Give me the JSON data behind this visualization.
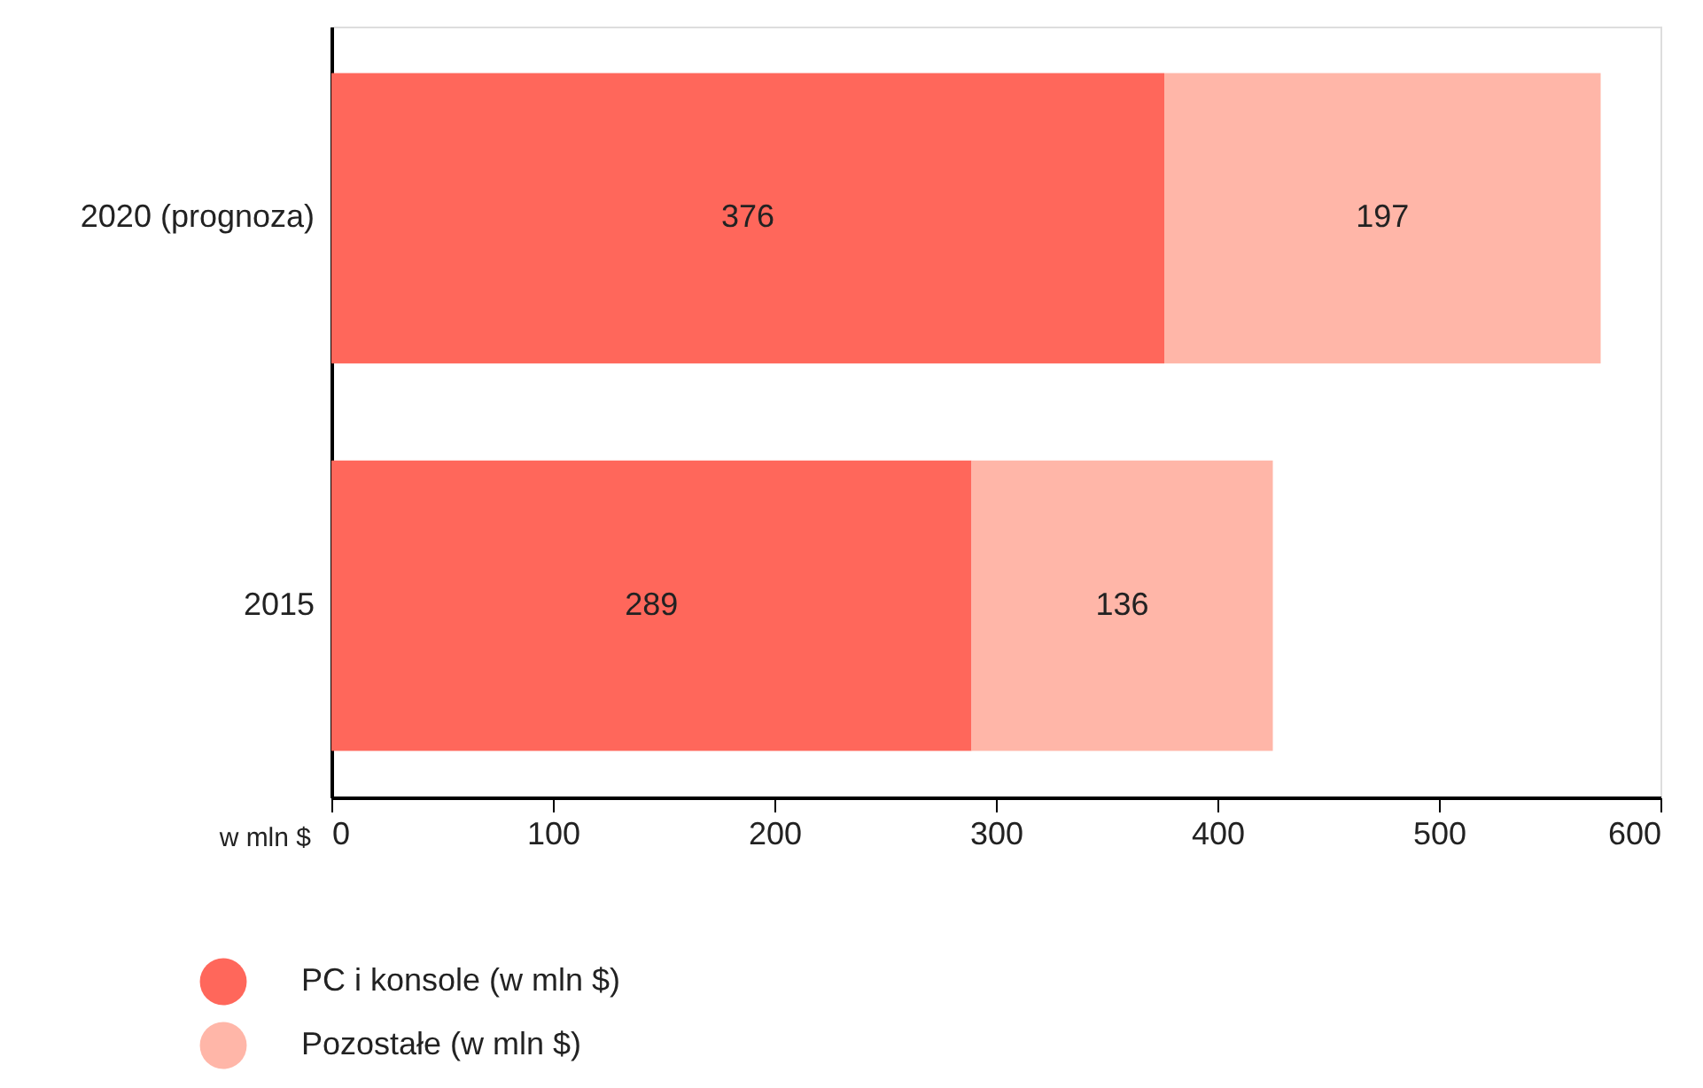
{
  "chart_data": {
    "type": "bar",
    "orientation": "horizontal",
    "stacked": true,
    "categories": [
      "2020 (prognoza)",
      "2015"
    ],
    "series": [
      {
        "name": "PC i konsole (w mln $)",
        "color": "#ff675b",
        "values": [
          376,
          289
        ]
      },
      {
        "name": "Pozostałe (w mln $)",
        "color": "#ffb6a8",
        "values": [
          197,
          136
        ]
      }
    ],
    "xlabel": "w mln $",
    "xlim": [
      0,
      600
    ],
    "xticks": [
      0,
      100,
      200,
      300,
      400,
      500,
      600
    ],
    "grid": false,
    "legend": "bottom",
    "data_labels": true
  }
}
